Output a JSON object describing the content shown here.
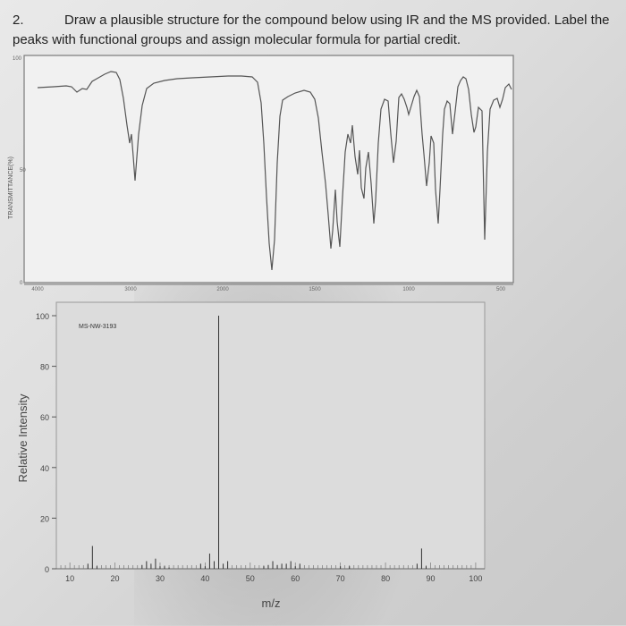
{
  "question": {
    "number": "2.",
    "text": "Draw a plausible structure for the compound below using IR and the MS provided.  Label the peaks with functional groups and assign molecular formula for partial credit."
  },
  "ir_spectrum": {
    "y_axis_label": "TRANSMITTANCE(%)",
    "y_ticks": [
      "100",
      "50",
      "0"
    ],
    "x_ticks": [
      "4000",
      "3000",
      "2000",
      "1500",
      "1000",
      "500"
    ]
  },
  "chart_data": {
    "type": "bar",
    "title": "MS-NW-3193",
    "xlabel": "m/z",
    "ylabel": "Relative Intensity",
    "xlim": [
      7,
      102
    ],
    "ylim": [
      0,
      100
    ],
    "x_ticks": [
      "10",
      "20",
      "30",
      "40",
      "50",
      "60",
      "70",
      "80",
      "90",
      "100"
    ],
    "y_ticks": [
      "100",
      "80",
      "60",
      "40",
      "20",
      "0"
    ],
    "x": [
      14,
      15,
      16,
      26,
      27,
      28,
      29,
      30,
      31,
      32,
      39,
      40,
      41,
      42,
      43,
      44,
      45,
      53,
      54,
      55,
      56,
      57,
      58,
      59,
      60,
      61,
      70,
      72,
      87,
      88,
      89
    ],
    "values": [
      2,
      9,
      1,
      1.5,
      3,
      2,
      4,
      1,
      1,
      0.5,
      2,
      1,
      6,
      3,
      100,
      2,
      3,
      1,
      1.5,
      3,
      1.5,
      2,
      2,
      3,
      1,
      2,
      1,
      1,
      2,
      8,
      1
    ]
  }
}
